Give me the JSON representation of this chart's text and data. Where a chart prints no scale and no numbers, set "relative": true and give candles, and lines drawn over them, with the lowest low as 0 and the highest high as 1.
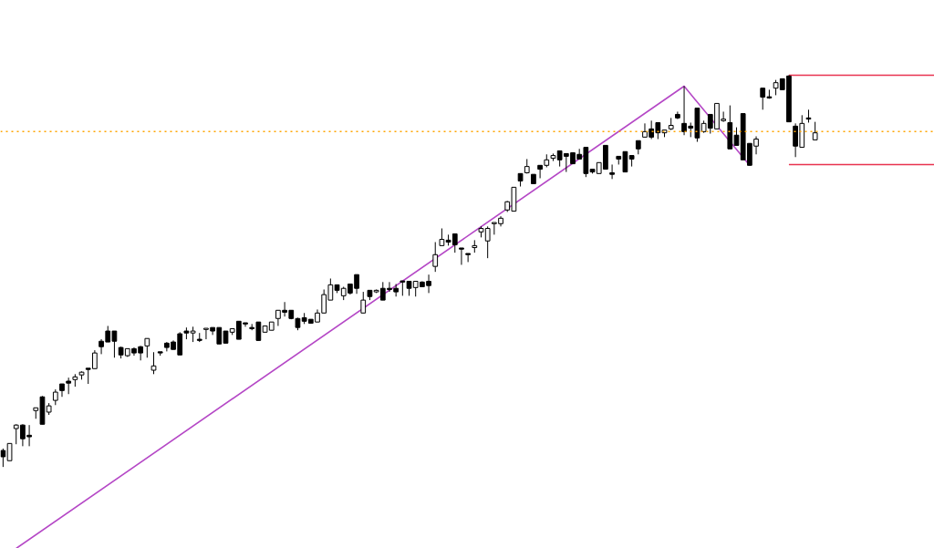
{
  "chart_data": {
    "type": "candlestick",
    "relative": true,
    "tick_labels": false,
    "grid": false,
    "categories": [
      null,
      null,
      null,
      null,
      null,
      null,
      null,
      null,
      null,
      null,
      null,
      null,
      null,
      null,
      null,
      null,
      null,
      null,
      null,
      null,
      null,
      null,
      null,
      null,
      null,
      null,
      null,
      null,
      null,
      null,
      null,
      null,
      null,
      null,
      null,
      null,
      null,
      null,
      null,
      null,
      null,
      null,
      null,
      null,
      null,
      null,
      null,
      null,
      null,
      null,
      null,
      null,
      null,
      null,
      null,
      null,
      null,
      null,
      null,
      null,
      null,
      null,
      null,
      null,
      null,
      null,
      null,
      null,
      null,
      null,
      null,
      null,
      null,
      null,
      null,
      null,
      null,
      null,
      null,
      null,
      null,
      null,
      null,
      null,
      null,
      null,
      null,
      null,
      null,
      null,
      null,
      null,
      null,
      null,
      null,
      null,
      null,
      null,
      null,
      null,
      null,
      null,
      null,
      null,
      null,
      null,
      null,
      null,
      null,
      null,
      null,
      null,
      null,
      null,
      null,
      null,
      null,
      null,
      null,
      null,
      null,
      null,
      null,
      null,
      null
    ],
    "ref_lines": [
      {
        "axis": "y",
        "value": 0.856,
        "color": "#ffa500",
        "line_style": "dotted"
      }
    ],
    "series": [
      {
        "color": "#000000",
        "ohlc": [
          [
            0.042,
            0.047,
            0,
            0.026
          ],
          [
            0.016,
            0.06,
            0.016,
            0.06
          ],
          [
            0.098,
            0.109,
            0.058,
            0.107
          ],
          [
            0.107,
            0.109,
            0.053,
            0.072
          ],
          [
            0.081,
            0.107,
            0.053,
            0.077
          ],
          [
            0.144,
            0.151,
            0.123,
            0.151
          ],
          [
            0.179,
            0.181,
            0.109,
            0.109
          ],
          [
            0.14,
            0.163,
            0.133,
            0.156
          ],
          [
            0.17,
            0.198,
            0.158,
            0.191
          ],
          [
            0.212,
            0.212,
            0.179,
            0.195
          ],
          [
            0.219,
            0.228,
            0.186,
            0.214
          ],
          [
            0.223,
            0.237,
            0.205,
            0.23
          ],
          [
            0.235,
            0.244,
            0.223,
            0.242
          ],
          [
            0.251,
            0.251,
            0.212,
            0.249
          ],
          [
            0.251,
            0.298,
            0.251,
            0.291
          ],
          [
            0.321,
            0.326,
            0.288,
            0.307
          ],
          [
            0.347,
            0.36,
            0.319,
            0.319
          ],
          [
            0.347,
            0.347,
            0.279,
            0.321
          ],
          [
            0.305,
            0.307,
            0.277,
            0.286
          ],
          [
            0.284,
            0.302,
            0.281,
            0.302
          ],
          [
            0.302,
            0.305,
            0.284,
            0.291
          ],
          [
            0.307,
            0.309,
            0.272,
            0.291
          ],
          [
            0.309,
            0.328,
            0.279,
            0.328
          ],
          [
            0.247,
            0.293,
            0.237,
            0.258
          ],
          [
            0.293,
            0.293,
            0.284,
            0.291
          ],
          [
            0.316,
            0.319,
            0.295,
            0.305
          ],
          [
            0.319,
            0.323,
            0.3,
            0.3
          ],
          [
            0.34,
            0.344,
            0.286,
            0.286
          ],
          [
            0.347,
            0.356,
            0.326,
            0.342
          ],
          [
            0.342,
            0.358,
            0.319,
            0.347
          ],
          [
            0.326,
            0.342,
            0.319,
            0.323
          ],
          [
            0.351,
            0.353,
            0.326,
            0.353
          ],
          [
            0.356,
            0.356,
            0.337,
            0.347
          ],
          [
            0.356,
            0.356,
            0.314,
            0.314
          ],
          [
            0.347,
            0.347,
            0.316,
            0.316
          ],
          [
            0.344,
            0.353,
            0.337,
            0.353
          ],
          [
            0.372,
            0.372,
            0.326,
            0.326
          ],
          [
            0.367,
            0.367,
            0.358,
            0.365
          ],
          [
            0.356,
            0.365,
            0.349,
            0.353
          ],
          [
            0.37,
            0.37,
            0.323,
            0.323
          ],
          [
            0.344,
            0.36,
            0.344,
            0.36
          ],
          [
            0.349,
            0.37,
            0.349,
            0.37
          ],
          [
            0.379,
            0.4,
            0.36,
            0.4
          ],
          [
            0.4,
            0.421,
            0.384,
            0.395
          ],
          [
            0.4,
            0.4,
            0.377,
            0.379
          ],
          [
            0.379,
            0.381,
            0.349,
            0.356
          ],
          [
            0.381,
            0.393,
            0.365,
            0.372
          ],
          [
            0.377,
            0.377,
            0.367,
            0.367
          ],
          [
            0.37,
            0.402,
            0.37,
            0.393
          ],
          [
            0.393,
            0.453,
            0.393,
            0.44
          ],
          [
            0.426,
            0.481,
            0.426,
            0.465
          ],
          [
            0.465,
            0.465,
            0.444,
            0.451
          ],
          [
            0.437,
            0.46,
            0.426,
            0.456
          ],
          [
            0.467,
            0.467,
            0.44,
            0.444
          ],
          [
            0.491,
            0.491,
            0.442,
            0.456
          ],
          [
            0.393,
            0.447,
            0.393,
            0.426
          ],
          [
            0.451,
            0.451,
            0.426,
            0.435
          ],
          [
            0.447,
            0.453,
            0.444,
            0.451
          ],
          [
            0.456,
            0.472,
            0.426,
            0.426
          ],
          [
            0.456,
            0.472,
            0.447,
            0.453
          ],
          [
            0.456,
            0.467,
            0.435,
            0.447
          ],
          [
            0.474,
            0.474,
            0.437,
            0.472
          ],
          [
            0.474,
            0.474,
            0.437,
            0.456
          ],
          [
            0.458,
            0.474,
            0.435,
            0.474
          ],
          [
            0.472,
            0.474,
            0.46,
            0.46
          ],
          [
            0.474,
            0.491,
            0.444,
            0.463
          ],
          [
            0.512,
            0.574,
            0.498,
            0.542
          ],
          [
            0.565,
            0.609,
            0.565,
            0.581
          ],
          [
            0.579,
            0.593,
            0.565,
            0.574
          ],
          [
            0.595,
            0.595,
            0.547,
            0.567
          ],
          [
            0.558,
            0.558,
            0.516,
            0.556
          ],
          [
            0.544,
            0.544,
            0.523,
            0.542
          ],
          [
            0.56,
            0.579,
            0.547,
            0.565
          ],
          [
            0.6,
            0.614,
            0.586,
            0.609
          ],
          [
            0.577,
            0.614,
            0.533,
            0.609
          ],
          [
            0.621,
            0.623,
            0.593,
            0.623
          ],
          [
            0.621,
            0.64,
            0.614,
            0.635
          ],
          [
            0.656,
            0.679,
            0.651,
            0.677
          ],
          [
            0.653,
            0.714,
            0.653,
            0.714
          ],
          [
            0.749,
            0.749,
            0.716,
            0.73
          ],
          [
            0.751,
            0.786,
            0.749,
            0.767
          ],
          [
            0.747,
            0.747,
            0.723,
            0.723
          ],
          [
            0.77,
            0.77,
            0.737,
            0.76
          ],
          [
            0.77,
            0.798,
            0.765,
            0.784
          ],
          [
            0.788,
            0.8,
            0.781,
            0.795
          ],
          [
            0.807,
            0.807,
            0.767,
            0.784
          ],
          [
            0.8,
            0.8,
            0.753,
            0.793
          ],
          [
            0.802,
            0.802,
            0.774,
            0.774
          ],
          [
            0.798,
            0.812,
            0.786,
            0.786
          ],
          [
            0.816,
            0.816,
            0.74,
            0.749
          ],
          [
            0.76,
            0.76,
            0.749,
            0.753
          ],
          [
            0.749,
            0.777,
            0.749,
            0.777
          ],
          [
            0.821,
            0.821,
            0.76,
            0.76
          ],
          [
            0.751,
            0.772,
            0.735,
            0.747
          ],
          [
            0.793,
            0.793,
            0.772,
            0.786
          ],
          [
            0.805,
            0.805,
            0.753,
            0.753
          ],
          [
            0.795,
            0.795,
            0.767,
            0.786
          ],
          [
            0.833,
            0.833,
            0.798,
            0.812
          ],
          [
            0.842,
            0.877,
            0.842,
            0.856
          ],
          [
            0.863,
            0.884,
            0.837,
            0.842
          ],
          [
            0.879,
            0.879,
            0.837,
            0.853
          ],
          [
            0.853,
            0.86,
            0.842,
            0.86
          ],
          [
            0.863,
            0.891,
            0.86,
            0.872
          ],
          [
            0.9,
            0.907,
            0.888,
            0.891
          ],
          [
            0.877,
            0.972,
            0.847,
            0.856
          ],
          [
            0.87,
            0.879,
            0.842,
            0.865
          ],
          [
            0.916,
            0.916,
            0.83,
            0.84
          ],
          [
            0.856,
            0.884,
            0.853,
            0.877
          ],
          [
            0.9,
            0.9,
            0.851,
            0.865
          ],
          [
            0.863,
            0.928,
            0.863,
            0.928
          ],
          [
            0.884,
            0.907,
            0.881,
            0.888
          ],
          [
            0.879,
            0.923,
            0.812,
            0.812
          ],
          [
            0.847,
            0.867,
            0.821,
            0.821
          ],
          [
            0.902,
            0.902,
            0.784,
            0.784
          ],
          [
            0.826,
            0.826,
            0.77,
            0.77
          ],
          [
            0.819,
            0.844,
            0.798,
            0.837
          ],
          [
            0.967,
            0.967,
            0.912,
            0.944
          ],
          [
            0.944,
            0.963,
            0.94,
            0.942
          ],
          [
            0.967,
            0.988,
            0.949,
            0.981
          ],
          [
            0.991,
            0.991,
            0.963,
            0.963
          ],
          [
            0.998,
            1,
            0.881,
            0.881
          ],
          [
            0.87,
            0.877,
            0.791,
            0.819
          ],
          [
            0.816,
            0.898,
            0.816,
            0.877
          ],
          [
            0.891,
            0.912,
            0.879,
            0.888
          ],
          [
            0.835,
            0.881,
            0.835,
            0.853
          ]
        ]
      },
      {
        "type": "line",
        "color": "#b548c6",
        "values": [
          null,
          null,
          -0.208,
          null,
          null,
          null,
          null,
          null,
          null,
          null,
          null,
          null,
          null,
          null,
          null,
          null,
          null,
          null,
          null,
          null,
          null,
          null,
          null,
          null,
          null,
          null,
          null,
          null,
          null,
          null,
          null,
          null,
          null,
          null,
          null,
          null,
          null,
          null,
          null,
          null,
          null,
          null,
          null,
          null,
          null,
          null,
          null,
          null,
          null,
          null,
          null,
          null,
          null,
          null,
          null,
          null,
          null,
          null,
          null,
          null,
          null,
          null,
          null,
          null,
          null,
          null,
          null,
          null,
          null,
          null,
          null,
          null,
          null,
          null,
          null,
          null,
          null,
          null,
          null,
          null,
          null,
          null,
          null,
          null,
          null,
          null,
          null,
          null,
          null,
          null,
          null,
          null,
          null,
          null,
          null,
          null,
          null,
          null,
          null,
          null,
          null,
          null,
          null,
          null,
          0.972,
          null,
          null,
          null,
          null,
          null,
          null,
          null,
          null,
          null,
          0.77,
          null,
          null,
          null,
          null,
          null,
          null,
          null,
          null,
          null,
          null
        ]
      },
      {
        "type": "line",
        "color": "#e8334f",
        "values": [
          null,
          null,
          null,
          null,
          null,
          null,
          null,
          null,
          null,
          null,
          null,
          null,
          null,
          null,
          null,
          null,
          null,
          null,
          null,
          null,
          null,
          null,
          null,
          null,
          null,
          null,
          null,
          null,
          null,
          null,
          null,
          null,
          null,
          null,
          null,
          null,
          null,
          null,
          null,
          null,
          null,
          null,
          null,
          null,
          null,
          null,
          null,
          null,
          null,
          null,
          null,
          null,
          null,
          null,
          null,
          null,
          null,
          null,
          null,
          null,
          null,
          null,
          null,
          null,
          null,
          null,
          null,
          null,
          null,
          null,
          null,
          null,
          null,
          null,
          null,
          null,
          null,
          null,
          null,
          null,
          null,
          null,
          null,
          null,
          null,
          null,
          null,
          null,
          null,
          null,
          null,
          null,
          null,
          null,
          null,
          null,
          null,
          null,
          null,
          null,
          null,
          null,
          null,
          null,
          null,
          null,
          null,
          null,
          null,
          null,
          null,
          null,
          null,
          null,
          null,
          null,
          null,
          null,
          null,
          null,
          1,
          1,
          1,
          1,
          1
        ]
      },
      {
        "type": "line",
        "color": "#e8334f",
        "values": [
          null,
          null,
          null,
          null,
          null,
          null,
          null,
          null,
          null,
          null,
          null,
          null,
          null,
          null,
          null,
          null,
          null,
          null,
          null,
          null,
          null,
          null,
          null,
          null,
          null,
          null,
          null,
          null,
          null,
          null,
          null,
          null,
          null,
          null,
          null,
          null,
          null,
          null,
          null,
          null,
          null,
          null,
          null,
          null,
          null,
          null,
          null,
          null,
          null,
          null,
          null,
          null,
          null,
          null,
          null,
          null,
          null,
          null,
          null,
          null,
          null,
          null,
          null,
          null,
          null,
          null,
          null,
          null,
          null,
          null,
          null,
          null,
          null,
          null,
          null,
          null,
          null,
          null,
          null,
          null,
          null,
          null,
          null,
          null,
          null,
          null,
          null,
          null,
          null,
          null,
          null,
          null,
          null,
          null,
          null,
          null,
          null,
          null,
          null,
          null,
          null,
          null,
          null,
          null,
          null,
          null,
          null,
          null,
          null,
          null,
          null,
          null,
          null,
          null,
          null,
          null,
          null,
          null,
          null,
          null,
          0.772,
          0.772,
          0.772,
          0.772,
          0.772
        ]
      }
    ]
  }
}
